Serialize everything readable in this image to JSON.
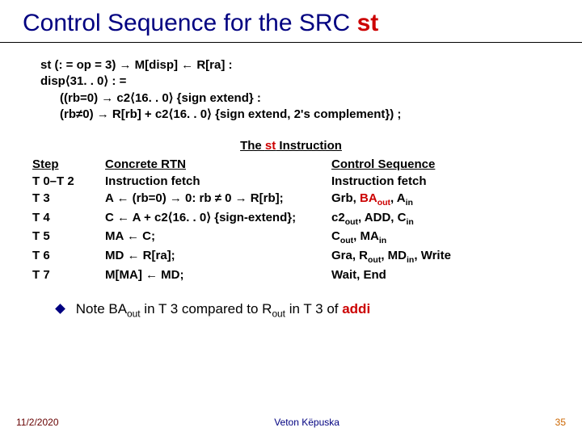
{
  "title": {
    "prefix": "Control Sequence for the SRC ",
    "st": "st"
  },
  "rtn": {
    "l1": "st (: = op = 3) → M[disp] ← R[ra] :",
    "l2": "disp⟨31. . 0⟩ : =",
    "l3": "((rb=0) → c2⟨16. . 0⟩ {sign extend} :",
    "l4": "(rb≠0) → R[rb] + c2⟨16. . 0⟩ {sign extend, 2's complement}) ;"
  },
  "sectionTitle": {
    "prefix": "The ",
    "st": "st",
    "suffix": " Instruction"
  },
  "headers": {
    "step": "Step",
    "rtn": "Concrete RTN",
    "ctrl": "Control Sequence"
  },
  "rows": [
    {
      "step": "T 0–T 2",
      "rtn": "Instruction fetch",
      "ctrl": "Instruction fetch",
      "ctrl_html": "Instruction fetch"
    },
    {
      "step": "T 3",
      "rtn": "A ← (rb=0) → 0: rb ≠  0 → R[rb];",
      "ctrl_html": "Grb, <span class='red'>BA<sub>out</sub></span>, A<sub>in</sub>"
    },
    {
      "step": "T 4",
      "rtn": "C ← A +  c2⟨16. . 0⟩ {sign-extend};",
      "ctrl_html": "c2<sub>out</sub>, ADD, C<sub>in</sub>"
    },
    {
      "step": "T 5",
      "rtn": "MA ← C;",
      "ctrl_html": "C<sub>out</sub>, MA<sub>in</sub>"
    },
    {
      "step": "T 6",
      "rtn": "MD ← R[ra];",
      "ctrl_html": "Gra, R<sub>out</sub>, MD<sub>in</sub>, Write"
    },
    {
      "step": "T 7",
      "rtn": "M[MA] ← MD;",
      "ctrl_html": "Wait, End"
    }
  ],
  "note": {
    "prefix": "Note BA",
    "sub1": "out",
    "mid": " in T 3 compared to R",
    "sub2": "out",
    "mid2": " in T 3 of ",
    "addi": "addi"
  },
  "footer": {
    "date": "11/2/2020",
    "author": "Veton Këpuska",
    "page": "35"
  }
}
